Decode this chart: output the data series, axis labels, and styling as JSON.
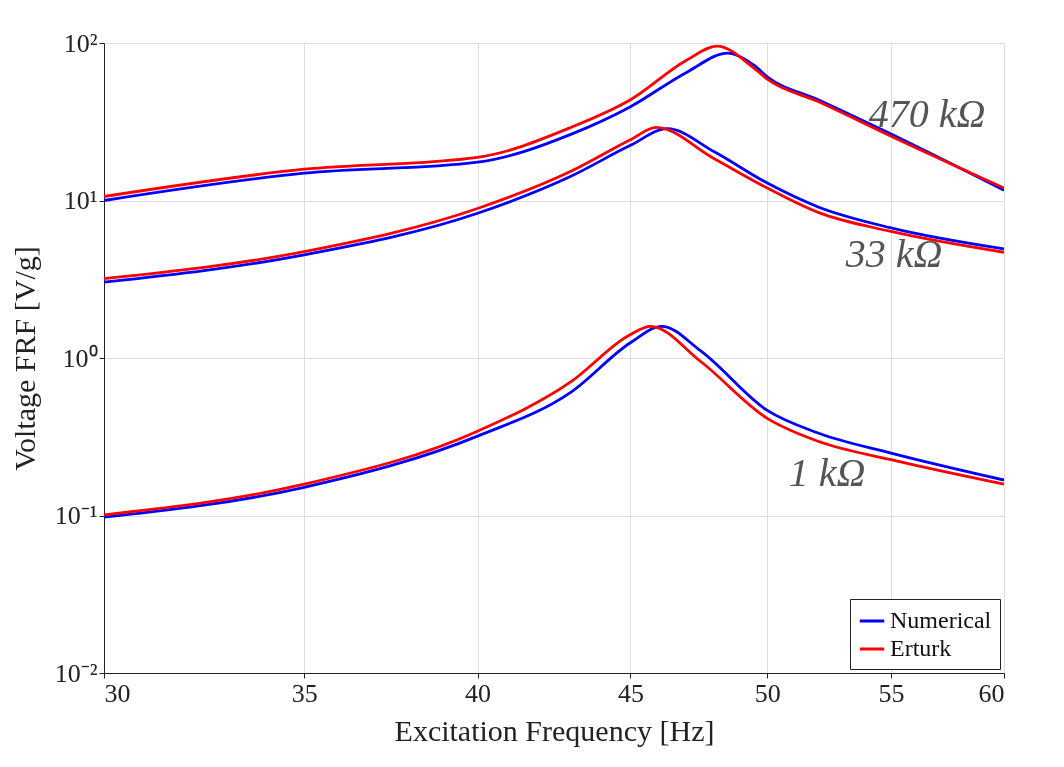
{
  "chart_data": {
    "type": "line",
    "xlabel": "Excitation Frequency [Hz]",
    "ylabel": "Voltage FRF [V/g]",
    "log": "xy",
    "grid": true,
    "legend": "bottom right",
    "line_style": "solid",
    "marker": "none",
    "xlim": [
      30,
      60
    ],
    "xticks": [
      30,
      35,
      40,
      45,
      50,
      55,
      60
    ],
    "ylim": [
      0.01,
      100
    ],
    "yticks": [
      {
        "value": 0.01,
        "label": "10⁻²"
      },
      {
        "value": 0.1,
        "label": "10⁻¹"
      },
      {
        "value": 1,
        "label": "10⁰"
      },
      {
        "value": 10,
        "label": "10¹"
      },
      {
        "value": 100,
        "label": "10²"
      }
    ],
    "series": [
      {
        "name": "Numerical",
        "color": "#0000ff",
        "x": [
          30,
          35,
          40,
          43,
          45,
          47,
          48.5,
          49.5,
          50,
          52,
          55,
          60
        ],
        "values": [
          10.0,
          14.9,
          17.5,
          26.4,
          39.4,
          65.3,
          86.3,
          72,
          61,
          43.6,
          26.4,
          11.6
        ]
      },
      {
        "name": "Erturk",
        "color": "#ff0000",
        "x": [
          30,
          35,
          40,
          43,
          45,
          47,
          48.1,
          49.5,
          50,
          52,
          55,
          60
        ],
        "values": [
          10.6,
          15.8,
          18.8,
          29.2,
          43.6,
          78,
          95.6,
          69,
          59,
          42.5,
          25.6,
          12.0
        ]
      },
      {
        "color": "#0000ff",
        "x": [
          30,
          35,
          40,
          43,
          45,
          46.3,
          48,
          50,
          52,
          55,
          60
        ],
        "values": [
          3.03,
          4.52,
          8.3,
          14.3,
          22.4,
          28.6,
          20.4,
          12.9,
          9.1,
          6.7,
          4.93
        ]
      },
      {
        "color": "#ff0000",
        "x": [
          30,
          35,
          40,
          43,
          45,
          45.9,
          48,
          50,
          52,
          55,
          60
        ],
        "values": [
          3.19,
          4.74,
          8.9,
          15.4,
          24.3,
          29.1,
          18.4,
          12.0,
          8.4,
          6.36,
          4.69
        ]
      },
      {
        "color": "#0000ff",
        "x": [
          30,
          35,
          40,
          43,
          45,
          46.1,
          47.5,
          50,
          52,
          55,
          60
        ],
        "values": [
          0.0975,
          0.151,
          0.319,
          0.61,
          1.25,
          1.59,
          1.11,
          0.465,
          0.334,
          0.249,
          0.168
        ]
      },
      {
        "color": "#ff0000",
        "x": [
          30,
          35,
          40,
          43,
          45,
          45.7,
          47.5,
          50,
          52,
          55,
          60
        ],
        "values": [
          0.101,
          0.158,
          0.343,
          0.71,
          1.41,
          1.59,
          0.95,
          0.414,
          0.296,
          0.226,
          0.158
        ]
      }
    ],
    "annotations": [
      "470 kΩ",
      "33 kΩ",
      "1 kΩ"
    ]
  }
}
